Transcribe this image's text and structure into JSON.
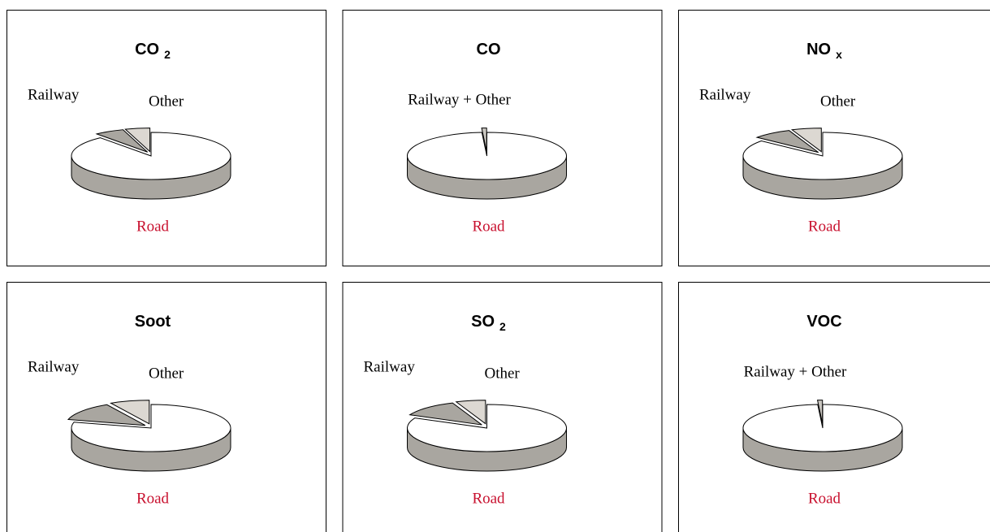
{
  "chart_data": [
    {
      "type": "pie",
      "title": "CO",
      "title_subscript": "2",
      "categories": [
        "Road",
        "Railway",
        "Other"
      ],
      "values": [
        89,
        6,
        5
      ],
      "colors": [
        "#ffffff",
        "#a9a6a0",
        "#dcd8d2"
      ],
      "label_colors": [
        "#c8102e",
        "#000000",
        "#000000"
      ]
    },
    {
      "type": "pie",
      "title": "CO",
      "categories": [
        "Road",
        "Railway + Other"
      ],
      "values": [
        99,
        1
      ],
      "colors": [
        "#ffffff",
        "#c9c6c0"
      ],
      "label_colors": [
        "#c8102e",
        "#000000"
      ]
    },
    {
      "type": "pie",
      "title": "NO",
      "title_subscript": "x",
      "categories": [
        "Road",
        "Railway",
        "Other"
      ],
      "values": [
        86,
        8,
        6
      ],
      "colors": [
        "#ffffff",
        "#a9a6a0",
        "#dcd8d2"
      ],
      "label_colors": [
        "#c8102e",
        "#000000",
        "#000000"
      ]
    },
    {
      "type": "pie",
      "title": "Soot",
      "categories": [
        "Road",
        "Railway",
        "Other"
      ],
      "values": [
        79,
        13,
        8
      ],
      "colors": [
        "#ffffff",
        "#a9a6a0",
        "#dcd8d2"
      ],
      "label_colors": [
        "#c8102e",
        "#000000",
        "#000000"
      ]
    },
    {
      "type": "pie",
      "title": "SO",
      "title_subscript": "2",
      "categories": [
        "Road",
        "Railway",
        "Other"
      ],
      "values": [
        82,
        12,
        6
      ],
      "colors": [
        "#ffffff",
        "#a9a6a0",
        "#dcd8d2"
      ],
      "label_colors": [
        "#c8102e",
        "#000000",
        "#000000"
      ]
    },
    {
      "type": "pie",
      "title": "VOC",
      "categories": [
        "Road",
        "Railway + Other"
      ],
      "values": [
        99,
        1
      ],
      "colors": [
        "#ffffff",
        "#c9c6c0"
      ],
      "label_colors": [
        "#c8102e",
        "#000000"
      ]
    }
  ]
}
